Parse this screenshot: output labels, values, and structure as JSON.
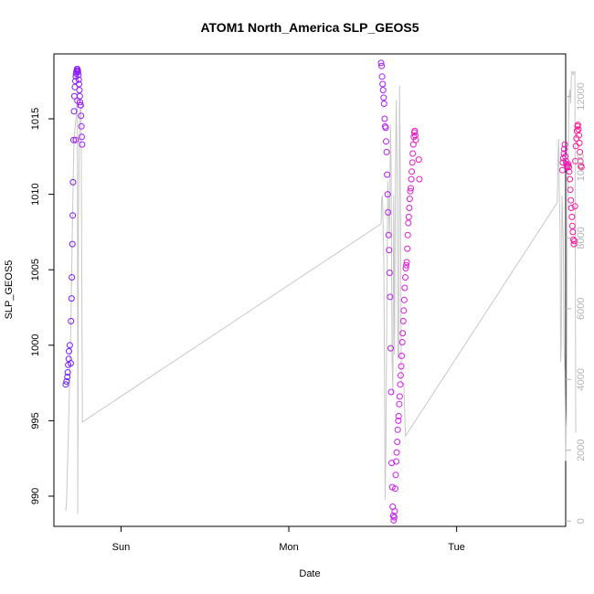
{
  "chart_data": {
    "type": "scatter",
    "title": "ATOM1 North_America SLP_GEOS5",
    "xlabel": "Date",
    "ylabel": "SLP_GEOS5",
    "xticks": [
      "Sun",
      "Mon",
      "Tue"
    ],
    "yticks_left": [
      "990",
      "995",
      "1000",
      "1005",
      "1010",
      "1015"
    ],
    "yticks_right": [
      "0",
      "2000",
      "4000",
      "6000",
      "8000",
      "10000",
      "12000"
    ],
    "x_range_days": [
      -0.4,
      2.65
    ],
    "ylim_left": [
      988,
      1019.3
    ],
    "ylim_right": [
      -150,
      13200
    ],
    "grid": false,
    "colors": {
      "axis": "#000000",
      "secondary_axis": "#b3b3b3",
      "line": "#c8c8c8",
      "point_start": "#6a1bff",
      "point_mid": "#d21ff0",
      "point_end": "#ff1a8c"
    },
    "points_day_slp": [
      [
        -0.33,
        997.4
      ],
      [
        -0.325,
        997.6
      ],
      [
        -0.32,
        997.9
      ],
      [
        -0.318,
        998.2
      ],
      [
        -0.315,
        998.7
      ],
      [
        -0.312,
        999.1
      ],
      [
        -0.31,
        999.6
      ],
      [
        -0.305,
        1000.0
      ],
      [
        -0.3,
        998.8
      ],
      [
        -0.298,
        1001.6
      ],
      [
        -0.295,
        1003.1
      ],
      [
        -0.293,
        1004.5
      ],
      [
        -0.29,
        1006.7
      ],
      [
        -0.288,
        1008.6
      ],
      [
        -0.286,
        1010.8
      ],
      [
        -0.283,
        1013.6
      ],
      [
        -0.28,
        1015.5
      ],
      [
        -0.278,
        1016.5
      ],
      [
        -0.275,
        1017.1
      ],
      [
        -0.272,
        1017.5
      ],
      [
        -0.27,
        1017.8
      ],
      [
        -0.268,
        1018.0
      ],
      [
        -0.266,
        1018.1
      ],
      [
        -0.264,
        1018.2
      ],
      [
        -0.262,
        1018.3
      ],
      [
        -0.26,
        1018.3
      ],
      [
        -0.258,
        1018.2
      ],
      [
        -0.256,
        1018.1
      ],
      [
        -0.254,
        1017.9
      ],
      [
        -0.252,
        1017.6
      ],
      [
        -0.25,
        1017.3
      ],
      [
        -0.248,
        1016.9
      ],
      [
        -0.246,
        1016.5
      ],
      [
        -0.244,
        1016.1
      ],
      [
        -0.242,
        1015.9
      ],
      [
        -0.24,
        1015.9
      ],
      [
        -0.238,
        1015.2
      ],
      [
        -0.236,
        1014.5
      ],
      [
        -0.234,
        1013.8
      ],
      [
        -0.232,
        1013.3
      ],
      [
        -0.27,
        1013.6
      ],
      [
        -0.26,
        1016.2
      ],
      [
        1.55,
        1018.7
      ],
      [
        1.553,
        1018.5
      ],
      [
        1.556,
        1017.8
      ],
      [
        1.559,
        1017.3
      ],
      [
        1.562,
        1016.9
      ],
      [
        1.565,
        1016.4
      ],
      [
        1.568,
        1016.0
      ],
      [
        1.571,
        1015.0
      ],
      [
        1.574,
        1014.5
      ],
      [
        1.577,
        1014.4
      ],
      [
        1.58,
        1013.5
      ],
      [
        1.583,
        1012.8
      ],
      [
        1.586,
        1011.3
      ],
      [
        1.589,
        1010.0
      ],
      [
        1.592,
        1008.8
      ],
      [
        1.595,
        1007.3
      ],
      [
        1.598,
        1006.3
      ],
      [
        1.601,
        1004.8
      ],
      [
        1.604,
        1003.2
      ],
      [
        1.607,
        999.8
      ],
      [
        1.61,
        996.9
      ],
      [
        1.613,
        992.2
      ],
      [
        1.616,
        990.6
      ],
      [
        1.619,
        989.3
      ],
      [
        1.622,
        988.7
      ],
      [
        1.625,
        988.4
      ],
      [
        1.628,
        988.6
      ],
      [
        1.631,
        989.0
      ],
      [
        1.634,
        990.5
      ],
      [
        1.637,
        991.4
      ],
      [
        1.64,
        992.3
      ],
      [
        1.643,
        992.9
      ],
      [
        1.646,
        993.6
      ],
      [
        1.649,
        994.4
      ],
      [
        1.652,
        995.0
      ],
      [
        1.655,
        995.3
      ],
      [
        1.658,
        996.1
      ],
      [
        1.661,
        996.6
      ],
      [
        1.664,
        997.4
      ],
      [
        1.667,
        998.0
      ],
      [
        1.67,
        998.6
      ],
      [
        1.673,
        999.3
      ],
      [
        1.676,
        1000.2
      ],
      [
        1.679,
        1000.8
      ],
      [
        1.682,
        1001.6
      ],
      [
        1.685,
        1002.3
      ],
      [
        1.688,
        1003.0
      ],
      [
        1.691,
        1003.8
      ],
      [
        1.694,
        1004.5
      ],
      [
        1.697,
        1005.1
      ],
      [
        1.7,
        1005.3
      ],
      [
        1.703,
        1005.5
      ],
      [
        1.706,
        1006.4
      ],
      [
        1.709,
        1007.3
      ],
      [
        1.712,
        1008.1
      ],
      [
        1.715,
        1008.5
      ],
      [
        1.718,
        1009.1
      ],
      [
        1.721,
        1009.7
      ],
      [
        1.724,
        1010.2
      ],
      [
        1.727,
        1010.4
      ],
      [
        1.73,
        1011.0
      ],
      [
        1.733,
        1011.5
      ],
      [
        1.736,
        1012.1
      ],
      [
        1.739,
        1012.7
      ],
      [
        1.742,
        1013.3
      ],
      [
        1.745,
        1013.8
      ],
      [
        1.748,
        1014.1
      ],
      [
        1.751,
        1014.2
      ],
      [
        1.754,
        1013.9
      ],
      [
        1.757,
        1013.6
      ],
      [
        1.775,
        1012.3
      ],
      [
        1.778,
        1011.0
      ],
      [
        2.63,
        1011.6
      ],
      [
        2.633,
        1012.1
      ],
      [
        2.636,
        1012.4
      ],
      [
        2.639,
        1012.7
      ],
      [
        2.642,
        1013.0
      ],
      [
        2.645,
        1013.3
      ],
      [
        2.648,
        1012.5
      ],
      [
        2.651,
        1012.2
      ],
      [
        2.654,
        1012.0
      ],
      [
        2.657,
        1011.9
      ],
      [
        2.66,
        1011.8
      ],
      [
        2.663,
        1011.9
      ],
      [
        2.666,
        1012.0
      ],
      [
        2.669,
        1011.8
      ],
      [
        2.672,
        1011.5
      ],
      [
        2.675,
        1011.0
      ],
      [
        2.678,
        1010.3
      ],
      [
        2.681,
        1009.6
      ],
      [
        2.684,
        1009.1
      ],
      [
        2.687,
        1008.5
      ],
      [
        2.69,
        1007.9
      ],
      [
        2.693,
        1007.5
      ],
      [
        2.696,
        1007.0
      ],
      [
        2.699,
        1006.7
      ],
      [
        2.702,
        1006.9
      ],
      [
        2.705,
        1009.2
      ],
      [
        2.708,
        1012.2
      ],
      [
        2.711,
        1013.2
      ],
      [
        2.714,
        1013.7
      ],
      [
        2.717,
        1014.2
      ],
      [
        2.72,
        1014.5
      ],
      [
        2.723,
        1014.6
      ],
      [
        2.726,
        1014.3
      ],
      [
        2.729,
        1013.9
      ],
      [
        2.732,
        1013.4
      ],
      [
        2.735,
        1012.8
      ],
      [
        2.738,
        1012.2
      ],
      [
        2.741,
        1011.9
      ],
      [
        2.744,
        1011.8
      ]
    ],
    "line_day_value": [
      [
        -0.33,
        300
      ],
      [
        -0.325,
        500
      ],
      [
        -0.31,
        3200
      ],
      [
        -0.305,
        4200
      ],
      [
        -0.298,
        5800
      ],
      [
        -0.293,
        7200
      ],
      [
        -0.29,
        8300
      ],
      [
        -0.286,
        9300
      ],
      [
        -0.283,
        10200
      ],
      [
        -0.28,
        10800
      ],
      [
        -0.27,
        11300
      ],
      [
        -0.262,
        11900
      ],
      [
        -0.26,
        12100
      ],
      [
        -0.258,
        200
      ],
      [
        -0.254,
        8500
      ],
      [
        -0.25,
        10200
      ],
      [
        -0.244,
        11600
      ],
      [
        -0.238,
        11700
      ],
      [
        -0.23,
        2800
      ],
      [
        1.55,
        8400
      ],
      [
        1.553,
        9100
      ],
      [
        1.558,
        9200
      ],
      [
        1.562,
        8400
      ],
      [
        1.566,
        7400
      ],
      [
        1.57,
        4500
      ],
      [
        1.574,
        600
      ],
      [
        1.578,
        1800
      ],
      [
        1.583,
        5200
      ],
      [
        1.59,
        9600
      ],
      [
        1.596,
        8700
      ],
      [
        1.6,
        8000
      ],
      [
        1.606,
        11200
      ],
      [
        1.61,
        10000
      ],
      [
        1.615,
        4600
      ],
      [
        1.62,
        3600
      ],
      [
        1.625,
        9200
      ],
      [
        1.63,
        4700
      ],
      [
        1.636,
        10000
      ],
      [
        1.64,
        11900
      ],
      [
        1.645,
        10000
      ],
      [
        1.65,
        4600
      ],
      [
        1.655,
        4600
      ],
      [
        1.66,
        12300
      ],
      [
        1.665,
        9800
      ],
      [
        1.67,
        3900
      ],
      [
        1.685,
        3900
      ],
      [
        1.695,
        2400
      ],
      [
        2.6,
        9000
      ],
      [
        2.605,
        10300
      ],
      [
        2.608,
        10800
      ],
      [
        2.612,
        9500
      ],
      [
        2.617,
        8200
      ],
      [
        2.62,
        4500
      ],
      [
        2.624,
        5000
      ],
      [
        2.628,
        9200
      ],
      [
        2.632,
        8500
      ],
      [
        2.636,
        7900
      ],
      [
        2.64,
        5000
      ],
      [
        2.645,
        4300
      ],
      [
        2.65,
        1700
      ],
      [
        2.655,
        3000
      ],
      [
        2.66,
        8200
      ],
      [
        2.665,
        10000
      ],
      [
        2.67,
        12000
      ],
      [
        2.675,
        12200
      ],
      [
        2.68,
        11800
      ],
      [
        2.685,
        12700
      ],
      [
        2.69,
        12700
      ],
      [
        2.695,
        12600
      ],
      [
        2.7,
        12700
      ],
      [
        2.705,
        12700
      ],
      [
        2.71,
        2500
      ]
    ]
  }
}
